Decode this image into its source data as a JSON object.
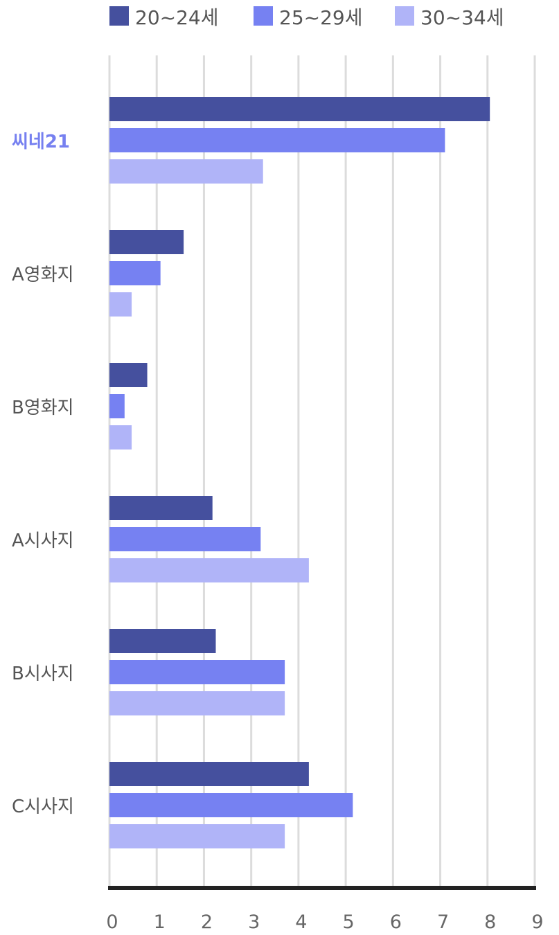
{
  "chart_data": {
    "type": "bar",
    "orientation": "horizontal",
    "categories": [
      "씨네21",
      "A영화지",
      "B영화지",
      "A시사지",
      "B시사지",
      "C시사지"
    ],
    "highlighted_category": "씨네21",
    "series": [
      {
        "name": "20~24세",
        "color": "#45509e",
        "values": [
          8.05,
          1.57,
          0.8,
          2.18,
          2.25,
          4.22
        ]
      },
      {
        "name": "25~29세",
        "color": "#7681f2",
        "values": [
          7.1,
          1.08,
          0.32,
          3.2,
          3.71,
          5.15
        ]
      },
      {
        "name": "30~34세",
        "color": "#b0b4f8",
        "values": [
          3.25,
          0.47,
          0.47,
          4.22,
          3.71,
          3.71
        ]
      }
    ],
    "xlim": [
      0,
      9
    ],
    "xticks": [
      "0",
      "1",
      "2",
      "3",
      "4",
      "5",
      "6",
      "7",
      "8",
      "9"
    ],
    "grid": true,
    "legend": "top",
    "highlight_color": "#7680f0"
  }
}
